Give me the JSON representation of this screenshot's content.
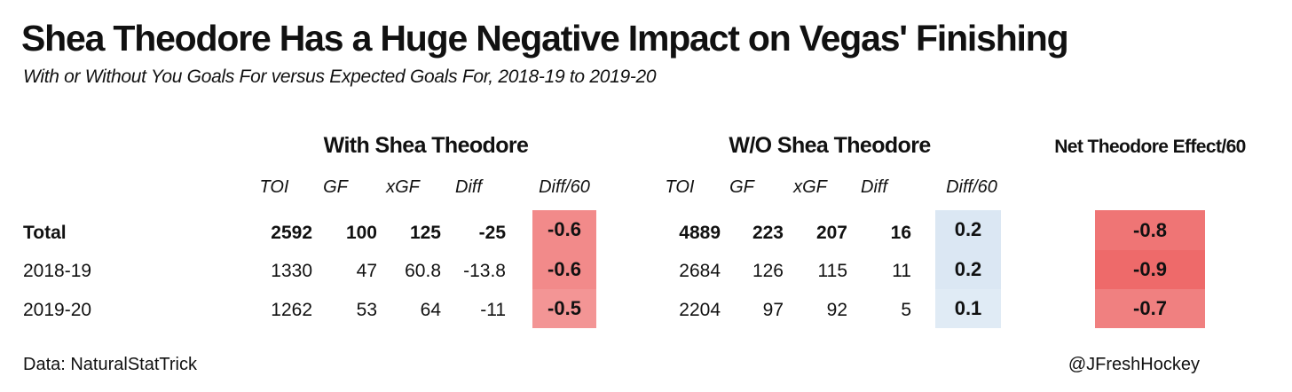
{
  "chart_data": {
    "type": "table",
    "title": "Shea Theodore Has a Huge Negative Impact on Vegas' Finishing",
    "subtitle": "With or Without You Goals For versus Expected Goals For, 2018-19 to 2019-20",
    "groups": {
      "with": "With Shea Theodore",
      "without": "W/O Shea Theodore",
      "net": "Net Theodore Effect/60"
    },
    "columns": [
      "TOI",
      "GF",
      "xGF",
      "Diff",
      "Diff/60"
    ],
    "rows": [
      {
        "label": "Total",
        "with": {
          "toi": "2592",
          "gf": "100",
          "xgf": "125",
          "diff": "-25",
          "diff60": "-0.6"
        },
        "without": {
          "toi": "4889",
          "gf": "223",
          "xgf": "207",
          "diff": "16",
          "diff60": "0.2"
        },
        "net": "-0.8"
      },
      {
        "label": "2018-19",
        "with": {
          "toi": "1330",
          "gf": "47",
          "xgf": "60.8",
          "diff": "-13.8",
          "diff60": "-0.6"
        },
        "without": {
          "toi": "2684",
          "gf": "126",
          "xgf": "115",
          "diff": "11",
          "diff60": "0.2"
        },
        "net": "-0.9"
      },
      {
        "label": "2019-20",
        "with": {
          "toi": "1262",
          "gf": "53",
          "xgf": "64",
          "diff": "-11",
          "diff60": "-0.5"
        },
        "without": {
          "toi": "2204",
          "gf": "97",
          "xgf": "92",
          "diff": "5",
          "diff60": "0.1"
        },
        "net": "-0.7"
      }
    ],
    "colors": {
      "negative": "#ee6a6a",
      "positive": "#9dbfdf"
    }
  },
  "footer": {
    "source": "Data: NaturalStatTrick",
    "credit": "@JFreshHockey"
  }
}
